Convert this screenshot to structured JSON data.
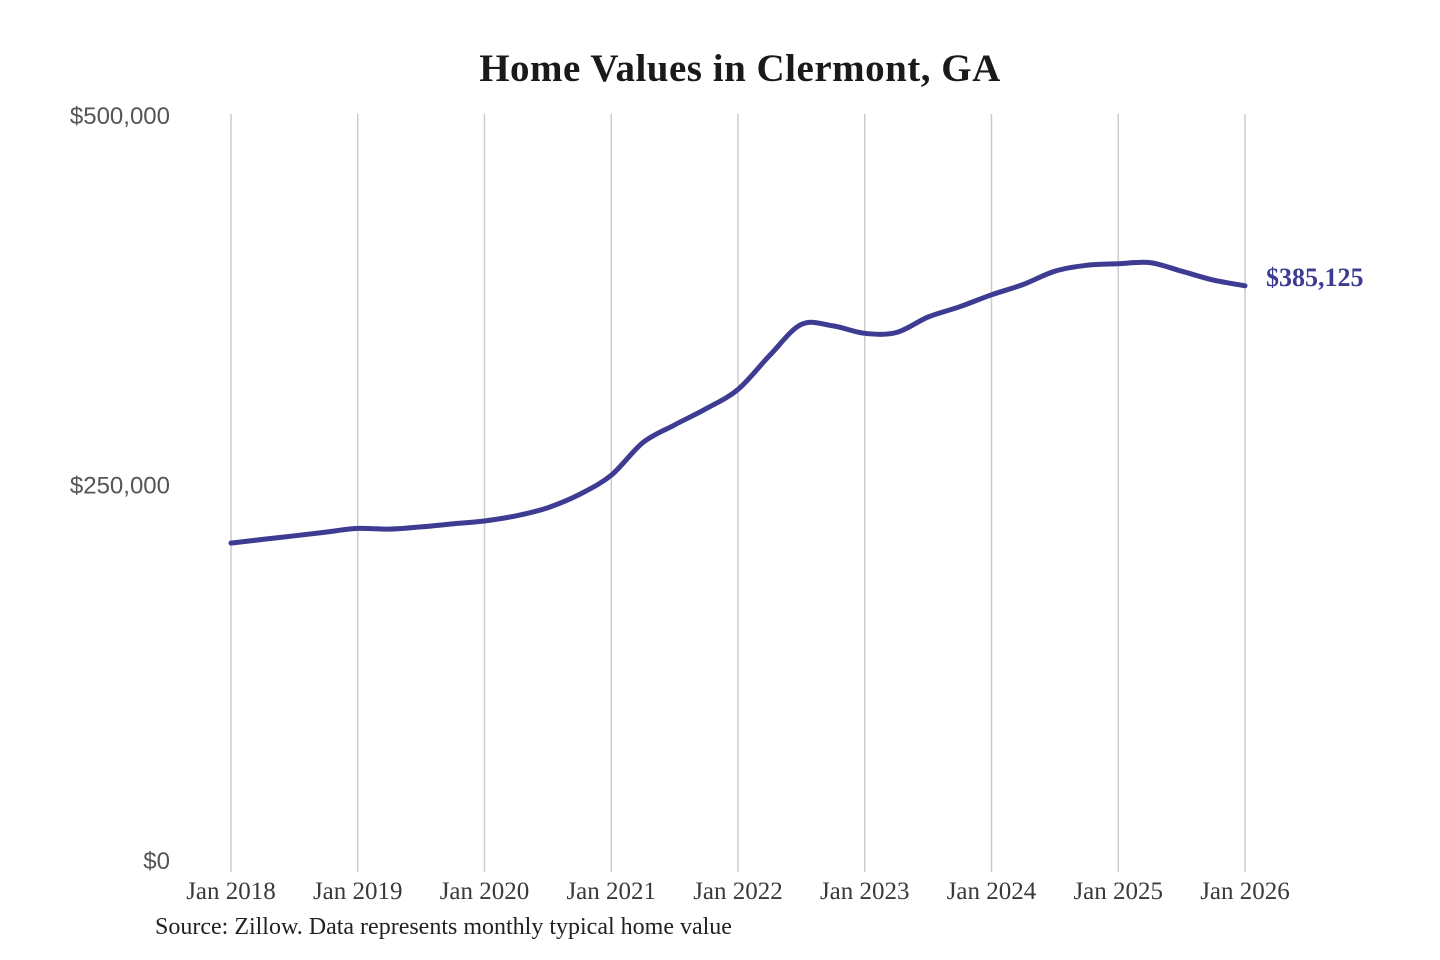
{
  "title": "Home Values in Clermont, GA",
  "source_note": "Source: Zillow. Data represents monthly typical home value",
  "colors": {
    "background": "#ffffff",
    "line": "#3d3b92",
    "grid": "#cbcbcb",
    "title_text": "#1a1a1a",
    "y_axis_text": "#555555",
    "x_axis_text": "#3a3a3a",
    "source_text": "#222222",
    "end_label_text": "#3d3b92"
  },
  "chart_data": {
    "type": "line",
    "title": "Home Values in Clermont, GA",
    "xlabel": "",
    "ylabel": "",
    "ylim": [
      0,
      500000
    ],
    "grid": "vertical-only",
    "legend": "none",
    "y_ticks": [
      {
        "label": "$500,000",
        "value": 500000
      },
      {
        "label": "$250,000",
        "value": 250000
      },
      {
        "label": "$0",
        "value": 0
      }
    ],
    "x_tick_labels": [
      "Jan 2018",
      "Jan 2019",
      "Jan 2020",
      "Jan 2021",
      "Jan 2022",
      "Jan 2023",
      "Jan 2024",
      "Jan 2025",
      "Jan 2026"
    ],
    "end_label": "$385,125",
    "end_value": 385125,
    "series": [
      {
        "name": "Monthly typical home value",
        "color": "#3d3b92",
        "x": [
          "Jan 2018",
          "Apr 2018",
          "Jul 2018",
          "Oct 2018",
          "Jan 2019",
          "Apr 2019",
          "Jul 2019",
          "Oct 2019",
          "Jan 2020",
          "Apr 2020",
          "Jul 2020",
          "Oct 2020",
          "Jan 2021",
          "Apr 2021",
          "Jul 2021",
          "Oct 2021",
          "Jan 2022",
          "Apr 2022",
          "Jul 2022",
          "Oct 2022",
          "Jan 2023",
          "Apr 2023",
          "Jul 2023",
          "Oct 2023",
          "Jan 2024",
          "Apr 2024",
          "Jul 2024",
          "Oct 2024",
          "Jan 2025",
          "Apr 2025",
          "Jul 2025",
          "Oct 2025",
          "Jan 2026"
        ],
        "values": [
          211000,
          213500,
          216000,
          218500,
          221000,
          220500,
          222000,
          224000,
          226000,
          229500,
          235000,
          244000,
          257000,
          279000,
          291000,
          302000,
          315000,
          338000,
          359000,
          358000,
          353000,
          353500,
          364000,
          371000,
          379000,
          386000,
          395000,
          399000,
          400000,
          400800,
          395000,
          389000,
          385125
        ]
      }
    ]
  }
}
